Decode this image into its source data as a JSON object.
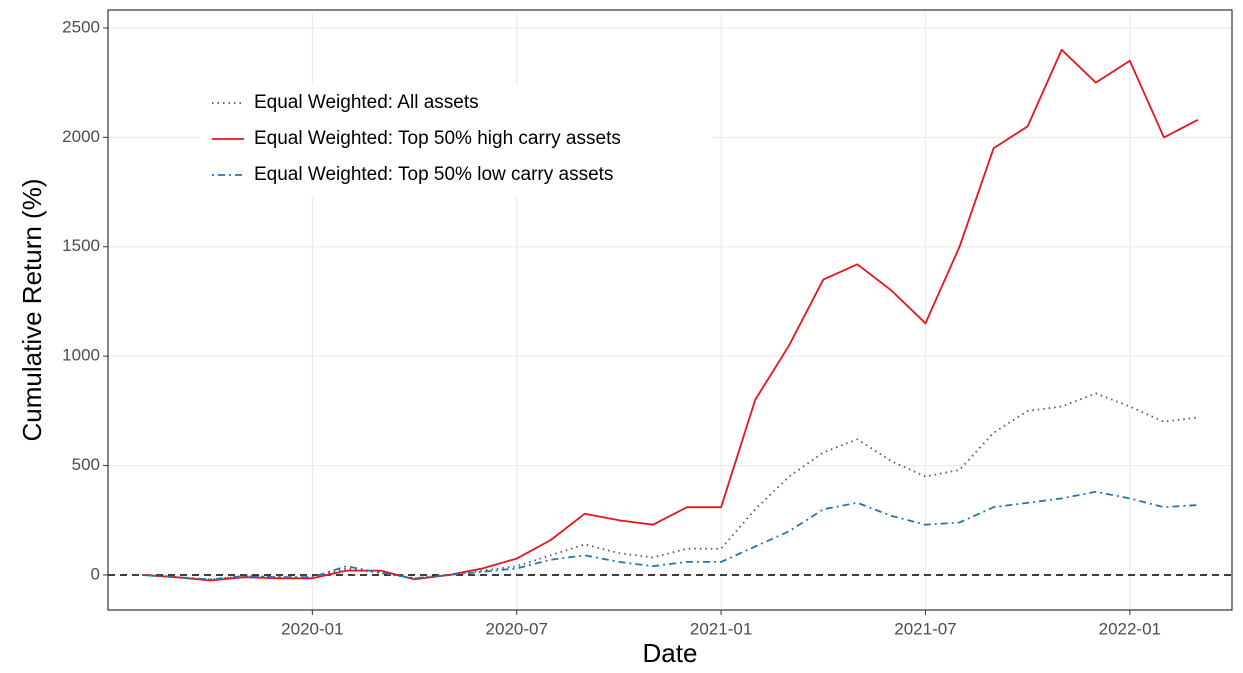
{
  "chart_data": {
    "type": "line",
    "x_label": "Date",
    "y_label": "Cumulative Return (%)",
    "x": [
      "2019-08",
      "2019-09",
      "2019-10",
      "2019-11",
      "2019-12",
      "2020-01",
      "2020-02",
      "2020-03",
      "2020-04",
      "2020-05",
      "2020-06",
      "2020-07",
      "2020-08",
      "2020-09",
      "2020-10",
      "2020-11",
      "2020-12",
      "2021-01",
      "2021-02",
      "2021-03",
      "2021-04",
      "2021-05",
      "2021-06",
      "2021-07",
      "2021-08",
      "2021-09",
      "2021-10",
      "2021-11",
      "2021-12",
      "2022-01",
      "2022-02",
      "2022-03"
    ],
    "series": [
      {
        "name": "Equal Weighted: All assets",
        "color": "#555555",
        "dash": "dotted",
        "values": [
          0,
          -10,
          -20,
          -5,
          -10,
          -10,
          30,
          10,
          -15,
          0,
          20,
          40,
          90,
          140,
          100,
          80,
          120,
          120,
          300,
          450,
          560,
          620,
          520,
          450,
          480,
          650,
          750,
          770,
          830,
          770,
          700,
          720
        ]
      },
      {
        "name": "Equal Weighted: Top 50% high carry assets",
        "color": "#e8141c",
        "dash": "solid",
        "values": [
          0,
          -10,
          -25,
          -10,
          -15,
          -15,
          20,
          20,
          -20,
          0,
          30,
          75,
          160,
          280,
          250,
          230,
          310,
          310,
          800,
          1050,
          1350,
          1420,
          1300,
          1150,
          1500,
          1950,
          2050,
          2400,
          2250,
          2350,
          2000,
          2080
        ]
      },
      {
        "name": "Equal Weighted: Top 50% low carry assets",
        "color": "#1f78b4",
        "dash": "dashdot",
        "values": [
          0,
          -10,
          -20,
          -5,
          -10,
          -10,
          40,
          10,
          -15,
          0,
          15,
          30,
          70,
          90,
          60,
          40,
          60,
          60,
          130,
          200,
          300,
          330,
          270,
          230,
          240,
          310,
          330,
          350,
          380,
          350,
          310,
          320
        ]
      }
    ],
    "xlim": [
      "2019-07",
      "2022-04"
    ],
    "xticks": [
      "2020-01",
      "2020-07",
      "2021-01",
      "2021-07",
      "2022-01"
    ],
    "ylim": [
      -160,
      2582
    ],
    "yticks": [
      0,
      500,
      1000,
      1500,
      2000,
      2500
    ],
    "reference_line": 0,
    "grid": true,
    "legend_position": "top-left"
  }
}
